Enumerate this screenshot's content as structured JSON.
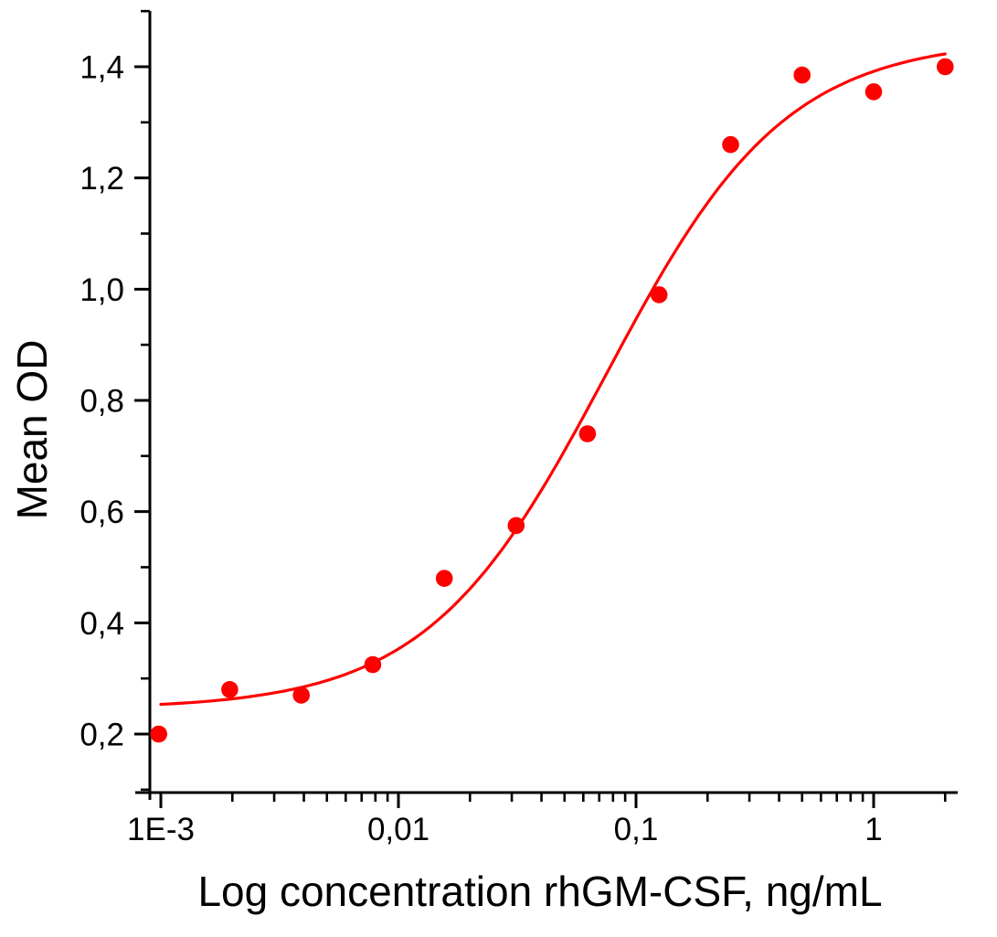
{
  "figure": {
    "background_color": "#ffffff"
  },
  "chart_data": {
    "type": "scatter",
    "title": "",
    "xlabel": "Log concentration rhGM-CSF, ng/mL",
    "ylabel": "Mean OD",
    "x_scale": "log",
    "y_scale": "linear",
    "x_axis_range": [
      0.00078,
      2.26
    ],
    "y_axis_range": [
      0.095,
      1.5
    ],
    "grid": false,
    "legend": "none",
    "axis_color": "#000000",
    "point_color": "#ff0000",
    "curve_color": "#ff0000",
    "decimal_separator": ",",
    "x_ticks": [
      {
        "value": 0.001,
        "label": "1E-3"
      },
      {
        "value": 0.01,
        "label": "0,01"
      },
      {
        "value": 0.1,
        "label": "0,1"
      },
      {
        "value": 1,
        "label": "1"
      }
    ],
    "x_minor_decades": [
      0.001,
      0.01,
      0.1,
      1
    ],
    "y_ticks": [
      {
        "value": 0.2,
        "label": "0,2"
      },
      {
        "value": 0.4,
        "label": "0,4"
      },
      {
        "value": 0.6,
        "label": "0,6"
      },
      {
        "value": 0.8,
        "label": "0,8"
      },
      {
        "value": 1.0,
        "label": "1,0"
      },
      {
        "value": 1.2,
        "label": "1,2"
      },
      {
        "value": 1.4,
        "label": "1,4"
      }
    ],
    "y_minor_values": [
      0.1,
      0.3,
      0.5,
      0.7,
      0.9,
      1.1,
      1.3,
      1.5
    ],
    "series_name": "Mean OD vs rhGM-CSF concentration",
    "points": [
      {
        "conc": 0.00098,
        "od": 0.2
      },
      {
        "conc": 0.00195,
        "od": 0.28
      },
      {
        "conc": 0.0039,
        "od": 0.27
      },
      {
        "conc": 0.0078,
        "od": 0.325
      },
      {
        "conc": 0.0156,
        "od": 0.48
      },
      {
        "conc": 0.0313,
        "od": 0.575
      },
      {
        "conc": 0.0625,
        "od": 0.74
      },
      {
        "conc": 0.125,
        "od": 0.99
      },
      {
        "conc": 0.25,
        "od": 1.26
      },
      {
        "conc": 0.5,
        "od": 1.385
      },
      {
        "conc": 1,
        "od": 1.355
      },
      {
        "conc": 2,
        "od": 1.4
      }
    ],
    "fit_curve": {
      "model": "4PL",
      "bottom": 0.245,
      "top": 1.45,
      "ec50": 0.075,
      "hill": 1.15,
      "x_start": 0.001,
      "x_end": 2.0
    }
  }
}
